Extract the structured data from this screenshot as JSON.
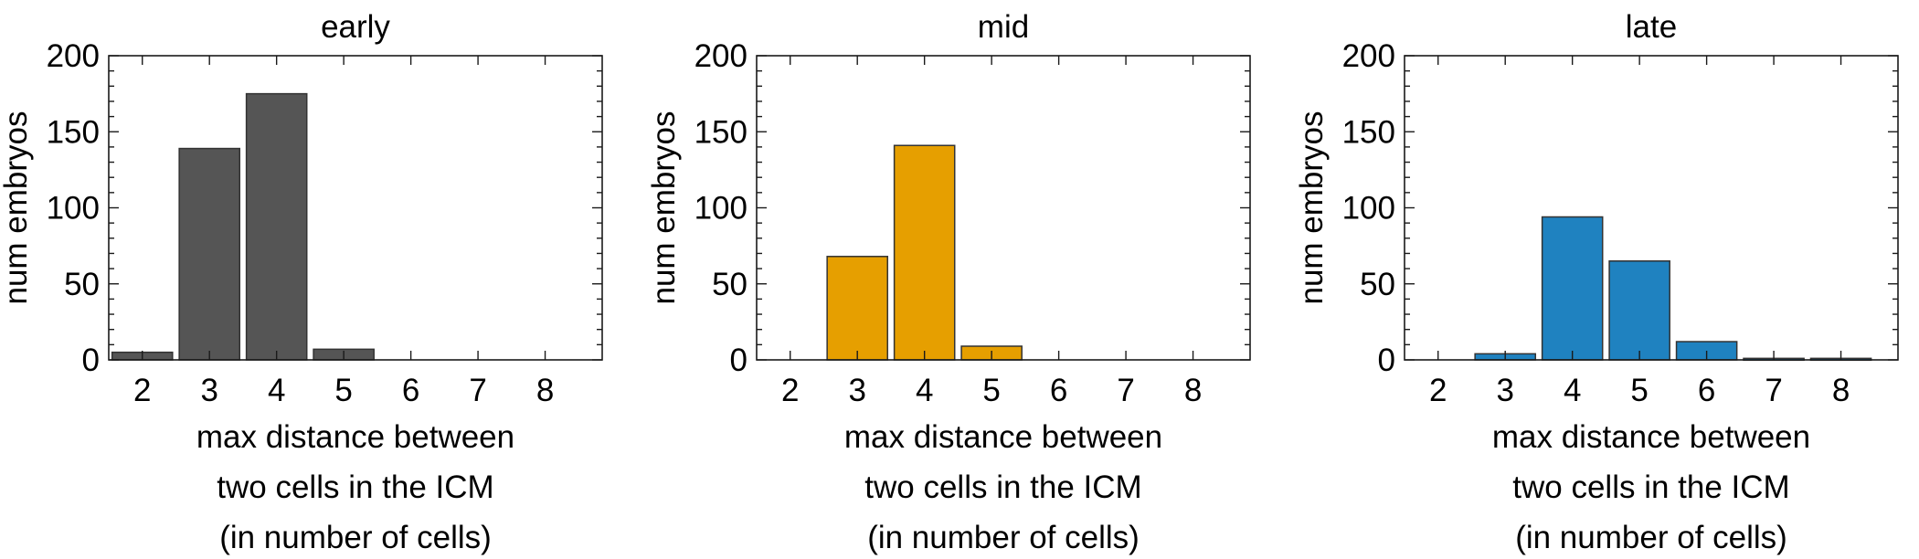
{
  "chart_data": [
    {
      "type": "bar",
      "title": "early",
      "xlabel": [
        "max distance between",
        "two cells in the ICM",
        "(in number of cells)"
      ],
      "ylabel": "num embryos",
      "categories": [
        "2",
        "3",
        "4",
        "5",
        "6",
        "7",
        "8"
      ],
      "values": [
        5,
        139,
        175,
        7,
        0,
        0,
        0
      ],
      "ylim": [
        0,
        200
      ],
      "yticks": [
        "0",
        "50",
        "100",
        "150",
        "200"
      ],
      "color": "#555555",
      "grid": false
    },
    {
      "type": "bar",
      "title": "mid",
      "xlabel": [
        "max distance between",
        "two cells in the ICM",
        "(in number of cells)"
      ],
      "ylabel": "num embryos",
      "categories": [
        "2",
        "3",
        "4",
        "5",
        "6",
        "7",
        "8"
      ],
      "values": [
        0,
        68,
        141,
        9,
        0,
        0,
        0
      ],
      "ylim": [
        0,
        200
      ],
      "yticks": [
        "0",
        "50",
        "100",
        "150",
        "200"
      ],
      "color": "#E69F00",
      "grid": false
    },
    {
      "type": "bar",
      "title": "late",
      "xlabel": [
        "max distance between",
        "two cells in the ICM",
        "(in number of cells)"
      ],
      "ylabel": "num embryos",
      "categories": [
        "2",
        "3",
        "4",
        "5",
        "6",
        "7",
        "8"
      ],
      "values": [
        0,
        4,
        94,
        65,
        12,
        1,
        1
      ],
      "ylim": [
        0,
        200
      ],
      "yticks": [
        "0",
        "50",
        "100",
        "150",
        "200"
      ],
      "color": "#1F82C0",
      "grid": false
    }
  ]
}
